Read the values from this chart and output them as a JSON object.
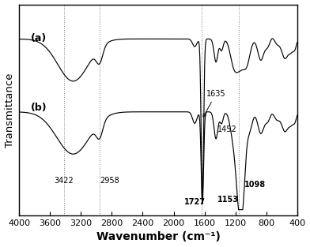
{
  "xlabel": "Wavenumber (cm⁻¹)",
  "ylabel": "Transmittance",
  "xlim": [
    4000,
    400
  ],
  "label_a": "(a)",
  "label_b": "(b)",
  "dotted_lines": [
    3422,
    2958,
    1635,
    1153
  ],
  "annotations": [
    {
      "text": "3422",
      "x": 3422
    },
    {
      "text": "2958",
      "x": 2958
    },
    {
      "text": "1727",
      "x": 1727
    },
    {
      "text": "1635",
      "x": 1635
    },
    {
      "text": "1452",
      "x": 1452
    },
    {
      "text": "1153",
      "x": 1153
    },
    {
      "text": "1098",
      "x": 1098
    }
  ],
  "xticks": [
    4000,
    3600,
    3200,
    2800,
    2400,
    2000,
    1600,
    1200,
    800,
    400
  ],
  "xtick_labels": [
    "4000",
    "3600",
    "3200",
    "2800",
    "2400",
    "2000",
    "1600",
    "1200",
    "800",
    "400"
  ],
  "line_color": "#000000",
  "background_color": "#ffffff"
}
